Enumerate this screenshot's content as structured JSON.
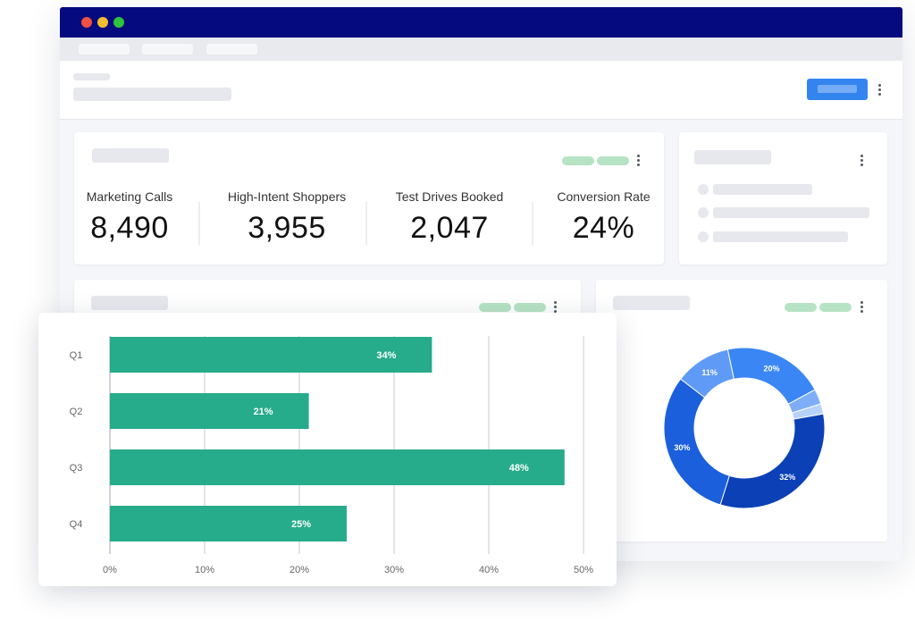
{
  "colors": {
    "titlebar": "#050a7e",
    "dot_close": "#f0503f",
    "dot_min": "#f4bd2f",
    "dot_max": "#2cc43d",
    "primary": "#3484f0",
    "bar": "#26ab8b",
    "placeholder": "#e6e8ed",
    "legend_pill": "#b6e3c4"
  },
  "window_controls": [
    "close-dot",
    "minimize-dot",
    "maximize-dot"
  ],
  "stats": [
    {
      "label": "Marketing Calls",
      "value": "8,490"
    },
    {
      "label": "High-Intent Shoppers",
      "value": "3,955"
    },
    {
      "label": "Test Drives Booked",
      "value": "2,047"
    },
    {
      "label": "Conversion Rate",
      "value": "24%"
    }
  ],
  "chart_data": [
    {
      "type": "bar",
      "orientation": "horizontal",
      "categories": [
        "Q1",
        "Q2",
        "Q3",
        "Q4"
      ],
      "values": [
        34,
        21,
        48,
        25
      ],
      "value_labels": [
        "34%",
        "21%",
        "48%",
        "25%"
      ],
      "x_ticks": [
        "0%",
        "10%",
        "20%",
        "30%",
        "40%",
        "50%"
      ],
      "xlim": [
        0,
        50
      ],
      "grid": true,
      "color": "#26ab8b"
    },
    {
      "type": "pie",
      "donut": true,
      "slices": [
        {
          "value": 20,
          "label": "20%",
          "color": "#3a86f4"
        },
        {
          "value": 3,
          "label": "",
          "color": "#7eaef7"
        },
        {
          "value": 2,
          "label": "",
          "color": "#b7d2fa"
        },
        {
          "value": 32,
          "label": "32%",
          "color": "#0b40b6"
        },
        {
          "value": 30,
          "label": "30%",
          "color": "#1b5fdd"
        },
        {
          "value": 11,
          "label": "11%",
          "color": "#5f9bf6"
        }
      ]
    }
  ]
}
